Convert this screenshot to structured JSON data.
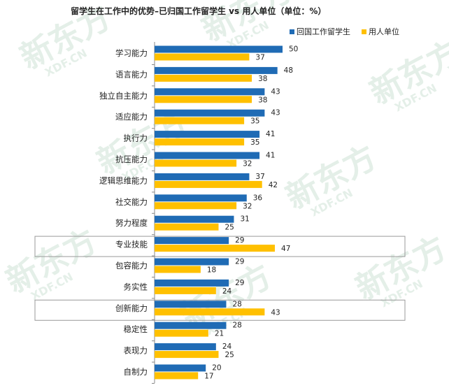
{
  "chart_data": {
    "type": "bar",
    "orientation": "horizontal",
    "title": "留学生在工作中的优势–已归国工作留学生 vs 用人单位（单位：%）",
    "categories": [
      "学习能力",
      "语言能力",
      "独立自主能力",
      "适应能力",
      "执行力",
      "抗压能力",
      "逻辑思维能力",
      "社交能力",
      "努力程度",
      "专业技能",
      "包容能力",
      "务实性",
      "创新能力",
      "稳定性",
      "表现力",
      "自制力"
    ],
    "series": [
      {
        "name": "回国工作留学生",
        "color": "#1f6bb5",
        "values": [
          50,
          48,
          43,
          43,
          41,
          41,
          37,
          36,
          31,
          29,
          29,
          29,
          28,
          28,
          24,
          20
        ]
      },
      {
        "name": "用人单位",
        "color": "#ffc000",
        "values": [
          37,
          38,
          38,
          35,
          35,
          32,
          42,
          32,
          25,
          47,
          18,
          24,
          43,
          21,
          25,
          17
        ]
      }
    ],
    "highlighted": [
      "专业技能",
      "创新能力"
    ],
    "legend_position": "top-right",
    "grid": false,
    "xlim": [
      0,
      50
    ]
  },
  "watermark": {
    "brand": "新东方",
    "site": "XDF.CN"
  }
}
